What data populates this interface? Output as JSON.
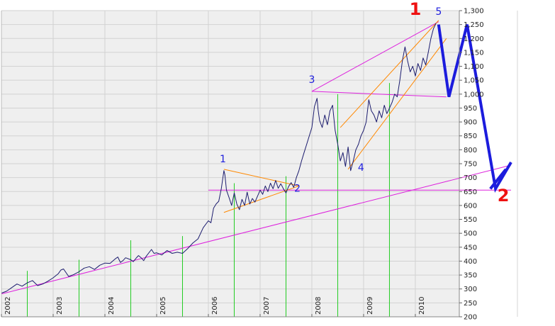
{
  "chart_data": {
    "type": "line",
    "title": "",
    "xlabel": "",
    "ylabel": "",
    "x_range": [
      2002.0,
      2010.85
    ],
    "ylim": [
      200,
      1300
    ],
    "grid": true,
    "y_ticks": [
      {
        "value": 200,
        "label": "200"
      },
      {
        "value": 250,
        "label": "250"
      },
      {
        "value": 300,
        "label": "300"
      },
      {
        "value": 350,
        "label": "350"
      },
      {
        "value": 400,
        "label": "400"
      },
      {
        "value": 450,
        "label": "450"
      },
      {
        "value": 500,
        "label": "500"
      },
      {
        "value": 550,
        "label": "550"
      },
      {
        "value": 600,
        "label": "600"
      },
      {
        "value": 650,
        "label": "650"
      },
      {
        "value": 700,
        "label": "700"
      },
      {
        "value": 750,
        "label": "750"
      },
      {
        "value": 800,
        "label": "800"
      },
      {
        "value": 850,
        "label": "850"
      },
      {
        "value": 900,
        "label": "900"
      },
      {
        "value": 950,
        "label": "950"
      },
      {
        "value": 1000,
        "label": "1,000"
      },
      {
        "value": 1050,
        "label": "1,050"
      },
      {
        "value": 1100,
        "label": "1,100"
      },
      {
        "value": 1150,
        "label": "1,150"
      },
      {
        "value": 1200,
        "label": "1,200"
      },
      {
        "value": 1250,
        "label": "1,250"
      },
      {
        "value": 1300,
        "label": "1,300"
      }
    ],
    "x_ticks": [
      {
        "value": 2002,
        "label": "2002"
      },
      {
        "value": 2003,
        "label": "2003"
      },
      {
        "value": 2004,
        "label": "2004"
      },
      {
        "value": 2005,
        "label": "2005"
      },
      {
        "value": 2006,
        "label": "2006"
      },
      {
        "value": 2007,
        "label": "2007"
      },
      {
        "value": 2008,
        "label": "2008"
      },
      {
        "value": 2009,
        "label": "2009"
      },
      {
        "value": 2010,
        "label": "2010"
      }
    ],
    "series": [
      {
        "color": "#1c1c6e",
        "points": [
          [
            2002.0,
            285
          ],
          [
            2002.1,
            292
          ],
          [
            2002.2,
            305
          ],
          [
            2002.3,
            318
          ],
          [
            2002.4,
            310
          ],
          [
            2002.5,
            322
          ],
          [
            2002.6,
            330
          ],
          [
            2002.7,
            312
          ],
          [
            2002.8,
            318
          ],
          [
            2002.9,
            328
          ],
          [
            2003.0,
            340
          ],
          [
            2003.1,
            355
          ],
          [
            2003.15,
            368
          ],
          [
            2003.2,
            372
          ],
          [
            2003.3,
            345
          ],
          [
            2003.4,
            352
          ],
          [
            2003.5,
            362
          ],
          [
            2003.6,
            375
          ],
          [
            2003.7,
            380
          ],
          [
            2003.8,
            370
          ],
          [
            2003.9,
            385
          ],
          [
            2004.0,
            393
          ],
          [
            2004.1,
            392
          ],
          [
            2004.2,
            408
          ],
          [
            2004.25,
            415
          ],
          [
            2004.3,
            395
          ],
          [
            2004.35,
            402
          ],
          [
            2004.4,
            412
          ],
          [
            2004.5,
            405
          ],
          [
            2004.55,
            398
          ],
          [
            2004.6,
            410
          ],
          [
            2004.65,
            420
          ],
          [
            2004.7,
            412
          ],
          [
            2004.75,
            402
          ],
          [
            2004.8,
            418
          ],
          [
            2004.9,
            442
          ],
          [
            2004.95,
            428
          ],
          [
            2005.0,
            430
          ],
          [
            2005.1,
            422
          ],
          [
            2005.2,
            438
          ],
          [
            2005.3,
            428
          ],
          [
            2005.4,
            432
          ],
          [
            2005.5,
            428
          ],
          [
            2005.6,
            445
          ],
          [
            2005.7,
            465
          ],
          [
            2005.8,
            480
          ],
          [
            2005.9,
            520
          ],
          [
            2006.0,
            545
          ],
          [
            2006.05,
            538
          ],
          [
            2006.1,
            590
          ],
          [
            2006.15,
            605
          ],
          [
            2006.2,
            615
          ],
          [
            2006.25,
            660
          ],
          [
            2006.3,
            725
          ],
          [
            2006.32,
            710
          ],
          [
            2006.35,
            655
          ],
          [
            2006.4,
            628
          ],
          [
            2006.45,
            600
          ],
          [
            2006.5,
            645
          ],
          [
            2006.55,
            605
          ],
          [
            2006.6,
            585
          ],
          [
            2006.65,
            622
          ],
          [
            2006.7,
            600
          ],
          [
            2006.75,
            648
          ],
          [
            2006.8,
            605
          ],
          [
            2006.85,
            625
          ],
          [
            2006.9,
            612
          ],
          [
            2007.0,
            655
          ],
          [
            2007.05,
            640
          ],
          [
            2007.1,
            670
          ],
          [
            2007.15,
            650
          ],
          [
            2007.2,
            680
          ],
          [
            2007.25,
            660
          ],
          [
            2007.3,
            690
          ],
          [
            2007.35,
            662
          ],
          [
            2007.4,
            678
          ],
          [
            2007.45,
            660
          ],
          [
            2007.5,
            645
          ],
          [
            2007.55,
            668
          ],
          [
            2007.6,
            682
          ],
          [
            2007.65,
            665
          ],
          [
            2007.7,
            700
          ],
          [
            2007.75,
            725
          ],
          [
            2007.8,
            760
          ],
          [
            2007.85,
            790
          ],
          [
            2007.9,
            820
          ],
          [
            2008.0,
            880
          ],
          [
            2008.05,
            955
          ],
          [
            2008.1,
            985
          ],
          [
            2008.12,
            945
          ],
          [
            2008.15,
            905
          ],
          [
            2008.2,
            880
          ],
          [
            2008.25,
            925
          ],
          [
            2008.3,
            890
          ],
          [
            2008.35,
            940
          ],
          [
            2008.4,
            960
          ],
          [
            2008.45,
            870
          ],
          [
            2008.5,
            820
          ],
          [
            2008.55,
            760
          ],
          [
            2008.6,
            790
          ],
          [
            2008.65,
            740
          ],
          [
            2008.7,
            810
          ],
          [
            2008.75,
            725
          ],
          [
            2008.8,
            760
          ],
          [
            2008.85,
            800
          ],
          [
            2008.9,
            820
          ],
          [
            2008.95,
            850
          ],
          [
            2009.0,
            870
          ],
          [
            2009.05,
            900
          ],
          [
            2009.1,
            980
          ],
          [
            2009.15,
            940
          ],
          [
            2009.2,
            925
          ],
          [
            2009.25,
            900
          ],
          [
            2009.3,
            940
          ],
          [
            2009.35,
            915
          ],
          [
            2009.4,
            960
          ],
          [
            2009.45,
            930
          ],
          [
            2009.5,
            950
          ],
          [
            2009.55,
            970
          ],
          [
            2009.6,
            1000
          ],
          [
            2009.65,
            990
          ],
          [
            2009.7,
            1050
          ],
          [
            2009.75,
            1120
          ],
          [
            2009.8,
            1170
          ],
          [
            2009.85,
            1120
          ],
          [
            2009.9,
            1080
          ],
          [
            2009.95,
            1100
          ],
          [
            2010.0,
            1065
          ],
          [
            2010.05,
            1110
          ],
          [
            2010.1,
            1085
          ],
          [
            2010.15,
            1130
          ],
          [
            2010.2,
            1105
          ],
          [
            2010.25,
            1150
          ],
          [
            2010.3,
            1200
          ],
          [
            2010.35,
            1235
          ],
          [
            2010.4,
            1255
          ]
        ]
      }
    ],
    "annotations": {
      "wave_labels": [
        {
          "text": "1",
          "x": 2006.28,
          "y": 755
        },
        {
          "text": "2",
          "x": 2007.72,
          "y": 650
        },
        {
          "text": "3",
          "x": 2008.0,
          "y": 1040
        },
        {
          "text": "4",
          "x": 2008.95,
          "y": 725
        },
        {
          "text": "5",
          "x": 2010.45,
          "y": 1285
        }
      ],
      "big_labels": [
        {
          "text": "1",
          "x": 2010.0,
          "y": 1285
        },
        {
          "text": "2",
          "x": 2011.7,
          "y": 615
        }
      ],
      "projection_path": [
        [
          2010.45,
          1250
        ],
        [
          2010.65,
          990
        ],
        [
          2011.0,
          1250
        ],
        [
          2011.55,
          660
        ],
        [
          2011.85,
          755
        ]
      ],
      "projection_cross": [
        [
          2011.45,
          660
        ],
        [
          2011.75,
          730
        ]
      ],
      "trendlines_magenta": [
        [
          [
            2002.0,
            282
          ],
          [
            2011.85,
            745
          ]
        ],
        [
          [
            2006.0,
            655
          ],
          [
            2011.85,
            655
          ]
        ],
        [
          [
            2008.0,
            1010
          ],
          [
            2010.6,
            990
          ]
        ],
        [
          [
            2008.0,
            1010
          ],
          [
            2010.45,
            1260
          ]
        ]
      ],
      "trendlines_orange": [
        [
          [
            2006.3,
            730
          ],
          [
            2007.75,
            670
          ]
        ],
        [
          [
            2006.3,
            575
          ],
          [
            2007.75,
            670
          ]
        ],
        [
          [
            2008.7,
            730
          ],
          [
            2010.6,
            1200
          ]
        ],
        [
          [
            2008.55,
            880
          ],
          [
            2010.45,
            1265
          ]
        ]
      ],
      "vertical_markers_green": [
        [
          2002.5,
          365
        ],
        [
          2003.5,
          405
        ],
        [
          2004.5,
          475
        ],
        [
          2005.5,
          490
        ],
        [
          2006.5,
          680
        ],
        [
          2007.5,
          705
        ],
        [
          2008.5,
          1000
        ],
        [
          2009.5,
          1040
        ]
      ]
    },
    "colors": {
      "plot_background": "#efefef",
      "grid": "#d2d2d2",
      "price_line": "#1c1c6e",
      "trend_magenta": "#dd22dd",
      "trend_orange": "#ff8800",
      "green_markers": "#22cc22",
      "projection": "#1c1cdd",
      "wave_labels": "#1d1ddd",
      "big_labels": "#ee1111"
    }
  }
}
